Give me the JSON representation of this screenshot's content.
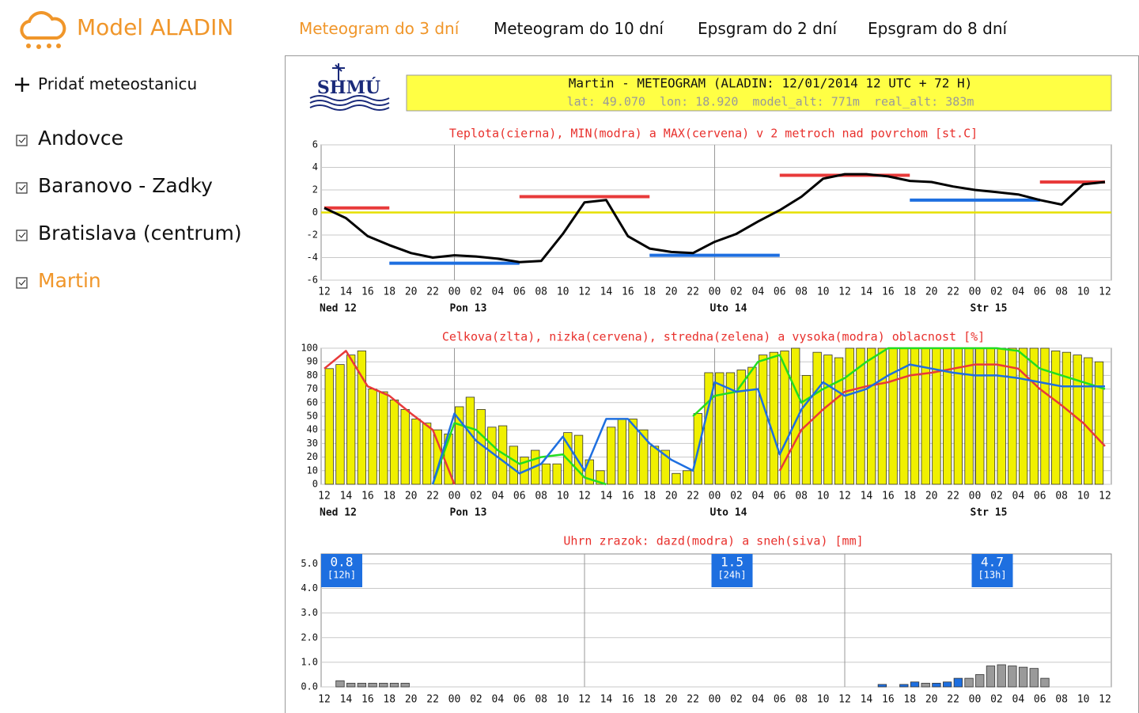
{
  "header": {
    "app_title": "Model ALADIN",
    "tabs": [
      "Meteogram do 3 dní",
      "Meteogram do 10 dní",
      "Epsgram do 2 dní",
      "Epsgram do 8 dní"
    ]
  },
  "sidebar": {
    "add_station": "Pridať meteostanicu",
    "stations": [
      "Andovce",
      "Baranovo - Zadky",
      "Bratislava (centrum)",
      "Martin"
    ]
  },
  "meteogram": {
    "logo_text": "SHMÚ",
    "title": "Martin - METEOGRAM (ALADIN: 12/01/2014 12 UTC + 72 H)",
    "location": "lat: 49.070  lon: 18.920  model_alt: 771m  real_alt: 383m"
  },
  "chart_data": [
    {
      "type": "line",
      "title": "Teplota(cierna), MIN(modra) a MAX(cervena) v 2 metroch nad povrchom [st.C]",
      "x": [
        0,
        2,
        4,
        6,
        8,
        10,
        12,
        14,
        16,
        18,
        20,
        22,
        24,
        26,
        28,
        30,
        32,
        34,
        36,
        38,
        40,
        42,
        44,
        46,
        48,
        50,
        52,
        54,
        56,
        58,
        60,
        62,
        64,
        66,
        68,
        70,
        72
      ],
      "series": [
        {
          "color": "#000000",
          "values": [
            0.4,
            -0.5,
            -2.1,
            -2.9,
            -3.6,
            -4.0,
            -3.8,
            -3.9,
            -4.1,
            -4.4,
            -4.3,
            -1.9,
            0.9,
            1.1,
            -2.1,
            -3.2,
            -3.5,
            -3.6,
            -2.6,
            -1.9,
            -0.8,
            0.2,
            1.4,
            3.0,
            3.4,
            3.4,
            3.2,
            2.8,
            2.7,
            2.3,
            2.0,
            1.8,
            1.6,
            1.1,
            0.7,
            2.5,
            2.7
          ]
        }
      ],
      "segments": [
        {
          "color": "#1e6fe0",
          "items": [
            {
              "x": [
                6,
                18
              ],
              "value": -4.5
            },
            {
              "x": [
                30,
                42
              ],
              "value": -3.8
            },
            {
              "x": [
                54,
                66
              ],
              "value": 1.1
            }
          ]
        },
        {
          "color": "#e83a3a",
          "items": [
            {
              "x": [
                0,
                6
              ],
              "value": 0.4
            },
            {
              "x": [
                18,
                30
              ],
              "value": 1.4
            },
            {
              "x": [
                42,
                54
              ],
              "value": 3.3
            },
            {
              "x": [
                66,
                72
              ],
              "value": 2.7
            }
          ]
        }
      ],
      "reference_line": {
        "value": 0,
        "color": "#e6e000"
      },
      "xlim": [
        0,
        72
      ],
      "ylim": [
        -6,
        6
      ],
      "yticks": [
        -6,
        -4,
        -2,
        0,
        2,
        4,
        6
      ],
      "xticks": [
        {
          "value": 0,
          "label": "12"
        },
        {
          "value": 2,
          "label": "14"
        },
        {
          "value": 4,
          "label": "16"
        },
        {
          "value": 6,
          "label": "18"
        },
        {
          "value": 8,
          "label": "20"
        },
        {
          "value": 10,
          "label": "22"
        },
        {
          "value": 12,
          "label": "00"
        },
        {
          "value": 14,
          "label": "02"
        },
        {
          "value": 16,
          "label": "04"
        },
        {
          "value": 18,
          "label": "06"
        },
        {
          "value": 20,
          "label": "08"
        },
        {
          "value": 22,
          "label": "10"
        },
        {
          "value": 24,
          "label": "12"
        },
        {
          "value": 26,
          "label": "14"
        },
        {
          "value": 28,
          "label": "16"
        },
        {
          "value": 30,
          "label": "18"
        },
        {
          "value": 32,
          "label": "20"
        },
        {
          "value": 34,
          "label": "22"
        },
        {
          "value": 36,
          "label": "00"
        },
        {
          "value": 38,
          "label": "02"
        },
        {
          "value": 40,
          "label": "04"
        },
        {
          "value": 42,
          "label": "06"
        },
        {
          "value": 44,
          "label": "08"
        },
        {
          "value": 46,
          "label": "10"
        },
        {
          "value": 48,
          "label": "12"
        },
        {
          "value": 50,
          "label": "14"
        },
        {
          "value": 52,
          "label": "16"
        },
        {
          "value": 54,
          "label": "18"
        },
        {
          "value": 56,
          "label": "20"
        },
        {
          "value": 58,
          "label": "22"
        },
        {
          "value": 60,
          "label": "00"
        },
        {
          "value": 62,
          "label": "02"
        },
        {
          "value": 64,
          "label": "04"
        },
        {
          "value": 66,
          "label": "06"
        },
        {
          "value": 68,
          "label": "08"
        },
        {
          "value": 70,
          "label": "10"
        },
        {
          "value": 72,
          "label": "12"
        }
      ],
      "day_labels": [
        {
          "value": 0,
          "label": "Ned 12"
        },
        {
          "value": 12,
          "label": "Pon 13"
        },
        {
          "value": 36,
          "label": "Uto 14"
        },
        {
          "value": 60,
          "label": "Str 15"
        }
      ]
    },
    {
      "type": "bar",
      "title": "Celkova(zlta), nizka(cervena), stredna(zelena) a vysoka(modra) oblacnost [%]",
      "bar_series": [
        {
          "color": "#f0f000",
          "x": [
            0,
            1,
            2,
            3,
            4,
            5,
            6,
            7,
            8,
            9,
            10,
            11,
            12,
            13,
            14,
            15,
            16,
            17,
            18,
            19,
            20,
            21,
            22,
            23,
            24,
            25,
            26,
            27,
            28,
            29,
            30,
            31,
            32,
            33,
            34,
            35,
            36,
            37,
            38,
            39,
            40,
            41,
            42,
            43,
            44,
            45,
            46,
            47,
            48,
            49,
            50,
            51,
            52,
            53,
            54,
            55,
            56,
            57,
            58,
            59,
            60,
            61,
            62,
            63,
            64,
            65,
            66,
            67,
            68,
            69,
            70,
            71
          ],
          "values": [
            85,
            88,
            95,
            98,
            70,
            68,
            62,
            55,
            48,
            45,
            40,
            37,
            57,
            64,
            55,
            42,
            43,
            28,
            20,
            25,
            15,
            15,
            38,
            36,
            18,
            10,
            42,
            48,
            48,
            40,
            28,
            25,
            8,
            10,
            52,
            82,
            82,
            82,
            84,
            86,
            95,
            97,
            98,
            100,
            80,
            97,
            95,
            93,
            100,
            100,
            100,
            100,
            100,
            100,
            100,
            100,
            100,
            100,
            100,
            100,
            100,
            100,
            100,
            100,
            100,
            100,
            100,
            98,
            97,
            95,
            93,
            90
          ]
        }
      ],
      "x": [
        0,
        2,
        4,
        6,
        8,
        10,
        12,
        14,
        16,
        18,
        20,
        22,
        24,
        26,
        28,
        30,
        32,
        34,
        36,
        38,
        40,
        42,
        44,
        46,
        48,
        50,
        52,
        54,
        56,
        58,
        60,
        62,
        64,
        66,
        68,
        70,
        72
      ],
      "series": [
        {
          "color": "#e83a3a",
          "values": [
            85,
            98,
            72,
            65,
            52,
            40,
            0,
            null,
            null,
            null,
            null,
            null,
            null,
            null,
            null,
            null,
            null,
            null,
            null,
            null,
            null,
            10,
            40,
            55,
            68,
            72,
            75,
            80,
            82,
            85,
            88,
            88,
            85,
            70,
            58,
            45,
            28
          ]
        },
        {
          "color": "#22dd22",
          "values": [
            null,
            null,
            null,
            null,
            null,
            0,
            45,
            40,
            25,
            15,
            20,
            22,
            5,
            0,
            null,
            null,
            null,
            50,
            65,
            68,
            90,
            95,
            60,
            70,
            78,
            90,
            100,
            100,
            100,
            100,
            100,
            100,
            98,
            85,
            80,
            75,
            70
          ]
        },
        {
          "color": "#1e6fe0",
          "values": [
            null,
            null,
            null,
            null,
            null,
            0,
            52,
            32,
            20,
            8,
            15,
            35,
            10,
            48,
            48,
            30,
            18,
            10,
            75,
            68,
            70,
            22,
            55,
            75,
            65,
            70,
            80,
            88,
            85,
            82,
            80,
            80,
            78,
            75,
            72,
            72,
            72
          ]
        }
      ],
      "xlim": [
        0,
        72
      ],
      "ylim": [
        0,
        100
      ],
      "yticks": [
        0,
        10,
        20,
        30,
        40,
        50,
        60,
        70,
        80,
        90,
        100
      ],
      "xticks": [
        {
          "value": 0,
          "label": "12"
        },
        {
          "value": 2,
          "label": "14"
        },
        {
          "value": 4,
          "label": "16"
        },
        {
          "value": 6,
          "label": "18"
        },
        {
          "value": 8,
          "label": "20"
        },
        {
          "value": 10,
          "label": "22"
        },
        {
          "value": 12,
          "label": "00"
        },
        {
          "value": 14,
          "label": "02"
        },
        {
          "value": 16,
          "label": "04"
        },
        {
          "value": 18,
          "label": "06"
        },
        {
          "value": 20,
          "label": "08"
        },
        {
          "value": 22,
          "label": "10"
        },
        {
          "value": 24,
          "label": "12"
        },
        {
          "value": 26,
          "label": "14"
        },
        {
          "value": 28,
          "label": "16"
        },
        {
          "value": 30,
          "label": "18"
        },
        {
          "value": 32,
          "label": "20"
        },
        {
          "value": 34,
          "label": "22"
        },
        {
          "value": 36,
          "label": "00"
        },
        {
          "value": 38,
          "label": "02"
        },
        {
          "value": 40,
          "label": "04"
        },
        {
          "value": 42,
          "label": "06"
        },
        {
          "value": 44,
          "label": "08"
        },
        {
          "value": 46,
          "label": "10"
        },
        {
          "value": 48,
          "label": "12"
        },
        {
          "value": 50,
          "label": "14"
        },
        {
          "value": 52,
          "label": "16"
        },
        {
          "value": 54,
          "label": "18"
        },
        {
          "value": 56,
          "label": "20"
        },
        {
          "value": 58,
          "label": "22"
        },
        {
          "value": 60,
          "label": "00"
        },
        {
          "value": 62,
          "label": "02"
        },
        {
          "value": 64,
          "label": "04"
        },
        {
          "value": 66,
          "label": "06"
        },
        {
          "value": 68,
          "label": "08"
        },
        {
          "value": 70,
          "label": "10"
        },
        {
          "value": 72,
          "label": "12"
        }
      ],
      "day_labels": [
        {
          "value": 0,
          "label": "Ned 12"
        },
        {
          "value": 12,
          "label": "Pon 13"
        },
        {
          "value": 36,
          "label": "Uto 14"
        },
        {
          "value": 60,
          "label": "Str 15"
        }
      ]
    },
    {
      "type": "bar",
      "title": "Uhrn zrazok: dazd(modra) a sneh(siva) [mm]",
      "bar_series": [
        {
          "color": "#9a9a9a",
          "x": [
            1,
            2,
            3,
            4,
            5,
            6,
            7,
            55,
            59,
            60,
            61,
            62,
            63,
            64,
            65,
            66
          ],
          "values": [
            0.25,
            0.15,
            0.15,
            0.15,
            0.15,
            0.15,
            0.15,
            0.15,
            0.35,
            0.5,
            0.85,
            0.9,
            0.85,
            0.8,
            0.75,
            0.35
          ]
        },
        {
          "color": "#1e6fe0",
          "x": [
            51,
            53,
            54,
            56,
            57,
            58
          ],
          "values": [
            0.1,
            0.1,
            0.2,
            0.15,
            0.2,
            0.35
          ]
        }
      ],
      "annotations": [
        {
          "x": 0,
          "value": 0.8,
          "label": "[12h]"
        },
        {
          "x": 36,
          "value": 1.5,
          "label": "[24h]"
        },
        {
          "x": 60,
          "value": 4.7,
          "label": "[13h]"
        }
      ],
      "xlim": [
        0,
        72
      ],
      "ylim": [
        0,
        5.4
      ],
      "yticks": [
        {
          "value": 0,
          "label": "0.0"
        },
        {
          "value": 1,
          "label": "1.0"
        },
        {
          "value": 2,
          "label": "2.0"
        },
        {
          "value": 3,
          "label": "3.0"
        },
        {
          "value": 4,
          "label": "4.0"
        },
        {
          "value": 5,
          "label": "5.0"
        }
      ],
      "xticks": [
        {
          "value": 0,
          "label": "12"
        },
        {
          "value": 2,
          "label": "14"
        },
        {
          "value": 4,
          "label": "16"
        },
        {
          "value": 6,
          "label": "18"
        },
        {
          "value": 8,
          "label": "20"
        },
        {
          "value": 10,
          "label": "22"
        },
        {
          "value": 12,
          "label": "00"
        },
        {
          "value": 14,
          "label": "02"
        },
        {
          "value": 16,
          "label": "04"
        },
        {
          "value": 18,
          "label": "06"
        },
        {
          "value": 20,
          "label": "08"
        },
        {
          "value": 22,
          "label": "10"
        },
        {
          "value": 24,
          "label": "12"
        },
        {
          "value": 26,
          "label": "14"
        },
        {
          "value": 28,
          "label": "16"
        },
        {
          "value": 30,
          "label": "18"
        },
        {
          "value": 32,
          "label": "20"
        },
        {
          "value": 34,
          "label": "22"
        },
        {
          "value": 36,
          "label": "00"
        },
        {
          "value": 38,
          "label": "02"
        },
        {
          "value": 40,
          "label": "04"
        },
        {
          "value": 42,
          "label": "06"
        },
        {
          "value": 44,
          "label": "08"
        },
        {
          "value": 46,
          "label": "10"
        },
        {
          "value": 48,
          "label": "12"
        },
        {
          "value": 50,
          "label": "14"
        },
        {
          "value": 52,
          "label": "16"
        },
        {
          "value": 54,
          "label": "18"
        },
        {
          "value": 56,
          "label": "20"
        },
        {
          "value": 58,
          "label": "22"
        },
        {
          "value": 60,
          "label": "00"
        },
        {
          "value": 62,
          "label": "02"
        },
        {
          "value": 64,
          "label": "04"
        },
        {
          "value": 66,
          "label": "06"
        },
        {
          "value": 68,
          "label": "08"
        },
        {
          "value": 70,
          "label": "10"
        },
        {
          "value": 72,
          "label": "12"
        }
      ]
    }
  ]
}
